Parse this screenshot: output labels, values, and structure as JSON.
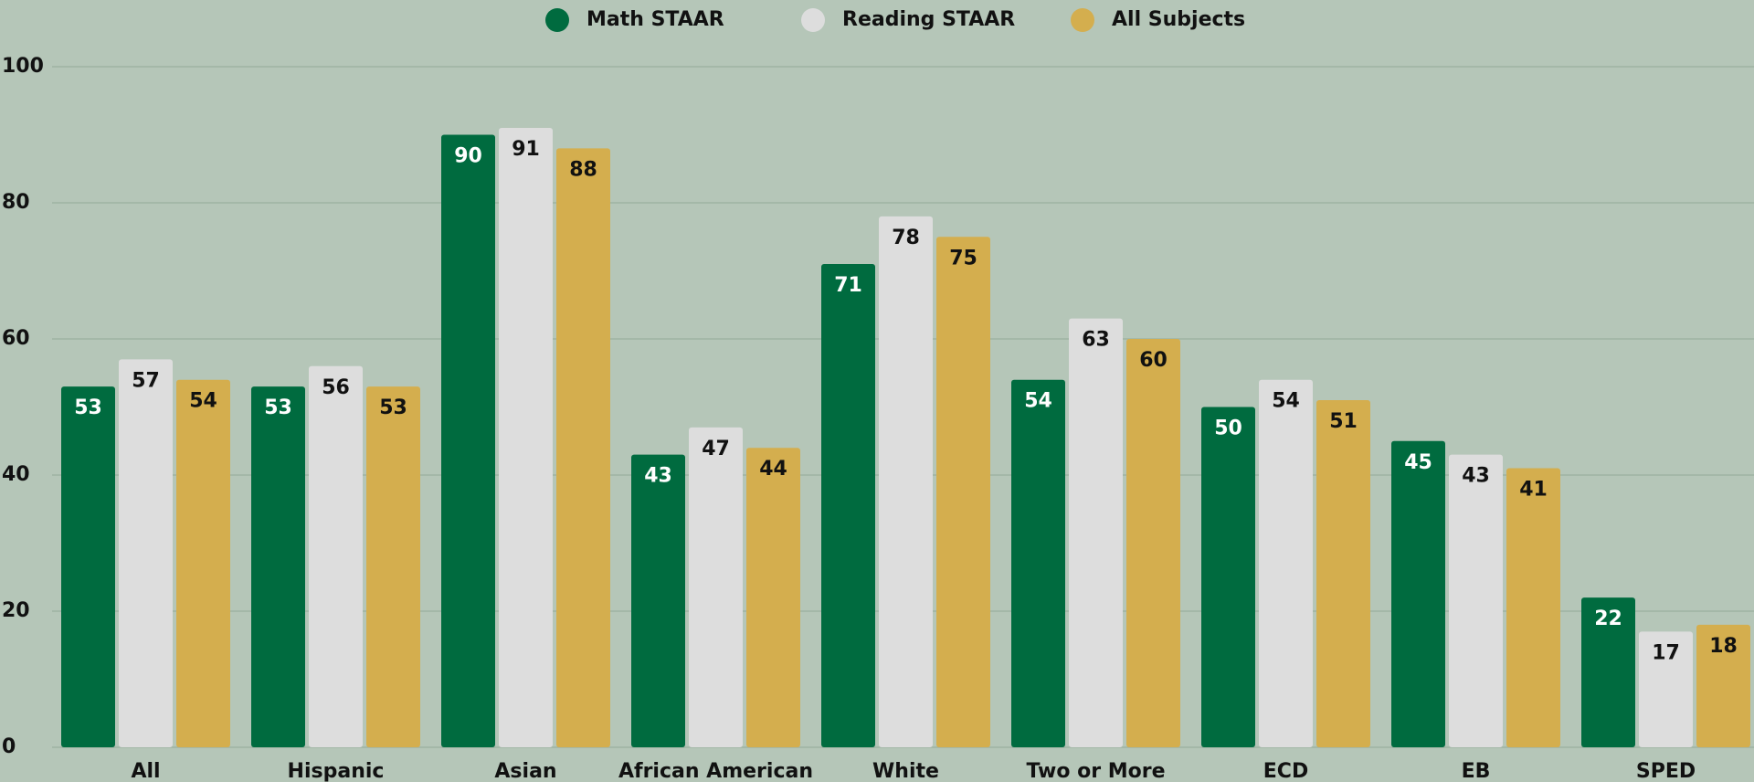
{
  "chart_data": {
    "type": "bar",
    "categories": [
      "All",
      "Hispanic",
      "Asian",
      "African American",
      "White",
      "Two or More",
      "ECD",
      "EB",
      "SPED"
    ],
    "series": [
      {
        "name": "Math STAAR",
        "color": "#006b3f",
        "values": [
          53,
          53,
          90,
          43,
          71,
          54,
          50,
          45,
          22
        ]
      },
      {
        "name": "Reading STAAR",
        "color": "#dddddd",
        "values": [
          57,
          56,
          91,
          47,
          78,
          63,
          54,
          43,
          17
        ]
      },
      {
        "name": "All Subjects",
        "color": "#d4ae4e",
        "values": [
          54,
          53,
          88,
          44,
          75,
          60,
          51,
          41,
          18
        ]
      }
    ],
    "ylim": [
      0,
      100
    ],
    "yticks": [
      0,
      20,
      40,
      60,
      80,
      100
    ],
    "grid": true,
    "legend": "top"
  }
}
